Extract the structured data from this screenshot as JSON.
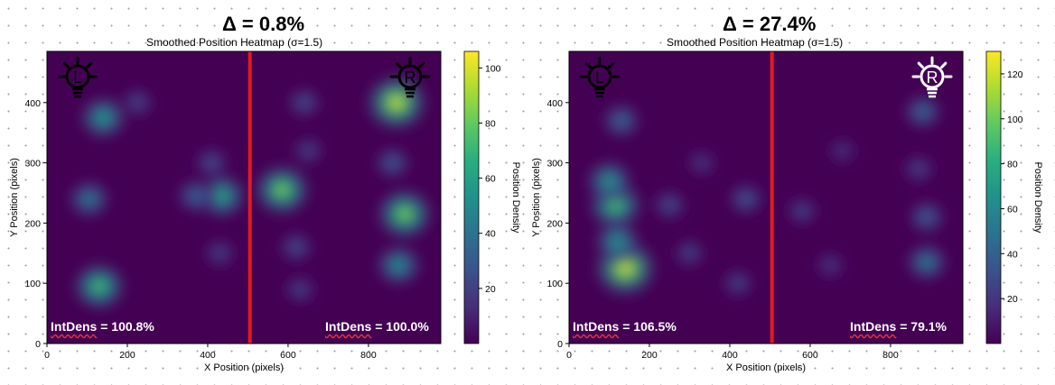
{
  "colors": {
    "background": "#440154",
    "divider": "#e41a1c",
    "colormap": [
      "#440154",
      "#472d7b",
      "#3b528b",
      "#2c728e",
      "#21918c",
      "#28ae80",
      "#5ec962",
      "#addc30",
      "#fde725"
    ]
  },
  "chart_data": [
    {
      "type": "heatmap",
      "delta_label": "Δ = 0.8%",
      "title": "Smoothed Position Heatmap (σ=1.5)",
      "xlabel": "X Position (pixels)",
      "ylabel": "Y Position (pixels)",
      "colorbar_label": "Position Density",
      "xlim": [
        0,
        980
      ],
      "ylim": [
        0,
        485
      ],
      "xticks": [
        0,
        200,
        400,
        600,
        800
      ],
      "yticks": [
        0,
        100,
        200,
        300,
        400
      ],
      "colorbar_range": [
        0,
        106
      ],
      "colorbar_ticks": [
        20,
        40,
        60,
        80,
        100
      ],
      "divider_x": 505,
      "left_icon": {
        "letter": "L",
        "state": "off"
      },
      "right_icon": {
        "letter": "R",
        "state": "off"
      },
      "intdens_word": "IntDens",
      "intdens_left_value": "= 100.8%",
      "intdens_right_value": "= 100.0%",
      "blobs": [
        {
          "x": 140,
          "y": 375,
          "value": 60
        },
        {
          "x": 105,
          "y": 240,
          "value": 45
        },
        {
          "x": 130,
          "y": 95,
          "value": 75
        },
        {
          "x": 225,
          "y": 400,
          "value": 22
        },
        {
          "x": 435,
          "y": 245,
          "value": 65
        },
        {
          "x": 370,
          "y": 245,
          "value": 35
        },
        {
          "x": 410,
          "y": 300,
          "value": 25
        },
        {
          "x": 430,
          "y": 150,
          "value": 20
        },
        {
          "x": 585,
          "y": 255,
          "value": 85
        },
        {
          "x": 640,
          "y": 400,
          "value": 25
        },
        {
          "x": 650,
          "y": 320,
          "value": 20
        },
        {
          "x": 620,
          "y": 160,
          "value": 25
        },
        {
          "x": 630,
          "y": 90,
          "value": 20
        },
        {
          "x": 870,
          "y": 400,
          "value": 100
        },
        {
          "x": 890,
          "y": 215,
          "value": 85
        },
        {
          "x": 875,
          "y": 130,
          "value": 55
        },
        {
          "x": 860,
          "y": 300,
          "value": 30
        }
      ]
    },
    {
      "type": "heatmap",
      "delta_label": "Δ = 27.4%",
      "title": "Smoothed Position Heatmap (σ=1.5)",
      "xlabel": "X Position (pixels)",
      "ylabel": "Y Position (pixels)",
      "colorbar_label": "Position Density",
      "xlim": [
        0,
        980
      ],
      "ylim": [
        0,
        485
      ],
      "xticks": [
        0,
        200,
        400,
        600,
        800
      ],
      "yticks": [
        0,
        100,
        200,
        300,
        400
      ],
      "colorbar_range": [
        0,
        130
      ],
      "colorbar_ticks": [
        20,
        40,
        60,
        80,
        100,
        120
      ],
      "divider_x": 505,
      "left_icon": {
        "letter": "L",
        "state": "off"
      },
      "right_icon": {
        "letter": "R",
        "state": "on"
      },
      "intdens_word": "IntDens",
      "intdens_left_value": "= 106.5%",
      "intdens_right_value": "= 79.1%",
      "blobs": [
        {
          "x": 140,
          "y": 125,
          "value": 125
        },
        {
          "x": 115,
          "y": 230,
          "value": 95
        },
        {
          "x": 100,
          "y": 270,
          "value": 70
        },
        {
          "x": 130,
          "y": 370,
          "value": 45
        },
        {
          "x": 120,
          "y": 170,
          "value": 70
        },
        {
          "x": 250,
          "y": 230,
          "value": 30
        },
        {
          "x": 300,
          "y": 150,
          "value": 25
        },
        {
          "x": 330,
          "y": 300,
          "value": 20
        },
        {
          "x": 440,
          "y": 240,
          "value": 35
        },
        {
          "x": 420,
          "y": 100,
          "value": 25
        },
        {
          "x": 580,
          "y": 220,
          "value": 25
        },
        {
          "x": 650,
          "y": 130,
          "value": 20
        },
        {
          "x": 680,
          "y": 320,
          "value": 18
        },
        {
          "x": 880,
          "y": 385,
          "value": 45
        },
        {
          "x": 890,
          "y": 210,
          "value": 40
        },
        {
          "x": 890,
          "y": 135,
          "value": 55
        },
        {
          "x": 870,
          "y": 290,
          "value": 25
        }
      ]
    }
  ]
}
